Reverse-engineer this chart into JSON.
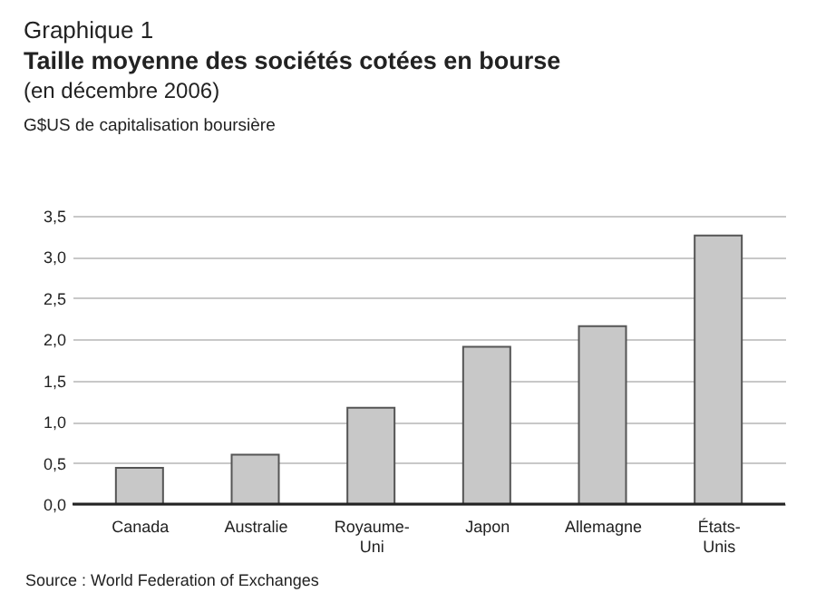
{
  "chart_data": {
    "type": "bar",
    "title": "Taille moyenne des sociétés cotées en bourse",
    "subtitle": "(en décembre 2006)",
    "ylabel": "G$US de capitalisation boursière",
    "annotations": [
      "Graphique 1",
      "Source : World Federation of Exchanges"
    ],
    "categories": [
      "Canada",
      "Australie",
      "Royaume-Uni",
      "Japon",
      "Allemagne",
      "États-Unis"
    ],
    "values": [
      0.44,
      0.6,
      1.17,
      1.91,
      2.16,
      3.26
    ],
    "color": "#c8c8c8",
    "ylim": [
      0,
      3.5
    ],
    "yticks": [
      {
        "value": 0,
        "label": "0,0"
      },
      {
        "value": 0.5,
        "label": "0,5"
      },
      {
        "value": 1,
        "label": "1,0"
      },
      {
        "value": 1.5,
        "label": "1,5"
      },
      {
        "value": 2,
        "label": "2,0"
      },
      {
        "value": 2.5,
        "label": "2,5"
      },
      {
        "value": 3,
        "label": "3,0"
      },
      {
        "value": 3.5,
        "label": "3,5"
      }
    ],
    "grid": "y"
  }
}
